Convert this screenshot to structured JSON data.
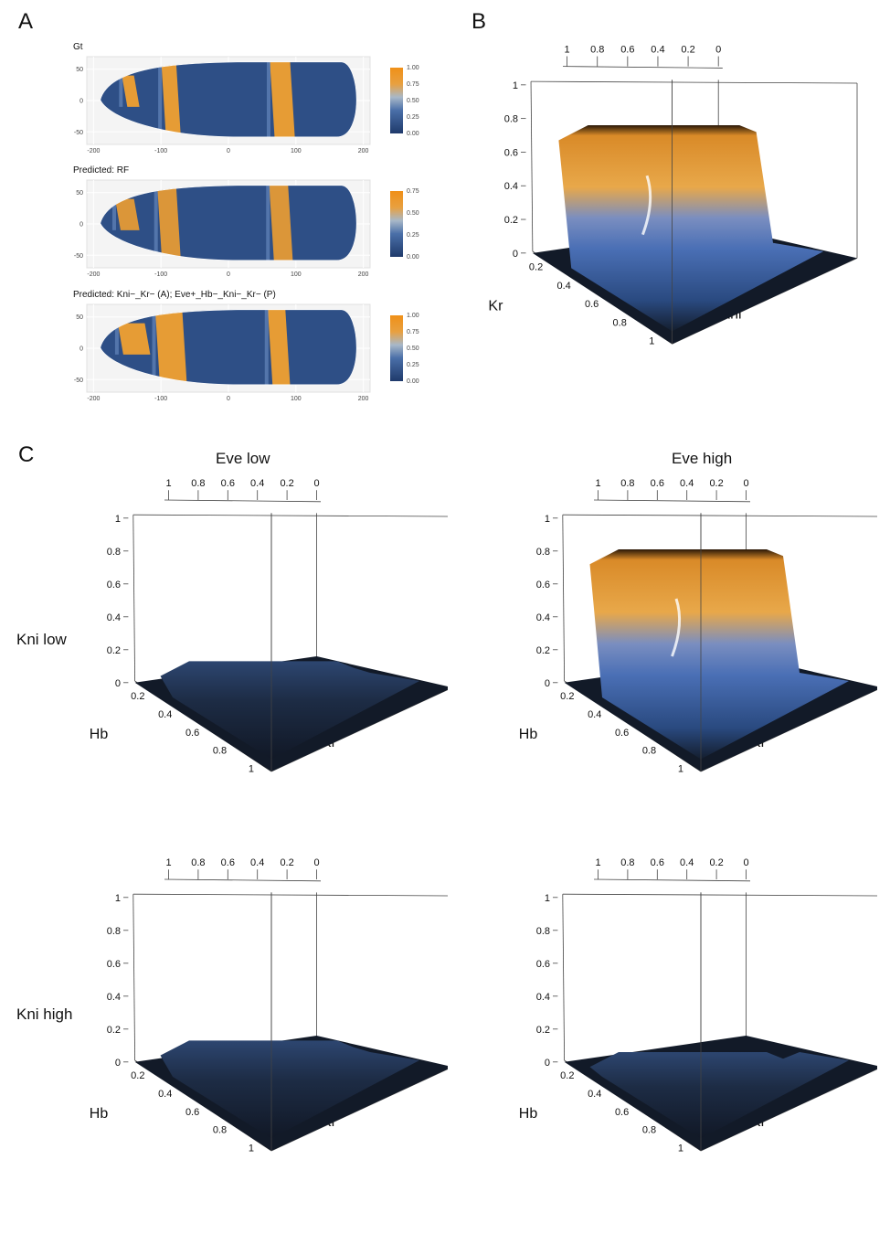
{
  "panels": {
    "a": "A",
    "b": "B",
    "c": "C"
  },
  "colors": {
    "bg_embryo": "#2e4f86",
    "stripe": "#f0a030",
    "stripe_mid": "#6d8fc4",
    "dark_surface": "#141e2e",
    "orange_top": "#d98a28"
  },
  "chart_data": [
    {
      "type": "heatmap",
      "title": "Gt",
      "x_ticks": [
        "-200",
        "-100",
        "0",
        "100",
        "200"
      ],
      "y_ticks": [
        "50",
        "0",
        "-50"
      ],
      "xlim": [
        -210,
        210
      ],
      "ylim": [
        -70,
        70
      ],
      "legend_ticks": [
        "1.00",
        "0.75",
        "0.50",
        "0.25",
        "0.00"
      ],
      "stripes": [
        {
          "center_x": -145,
          "width": 18,
          "value": 0.85,
          "extent": "partial"
        },
        {
          "center_x": -85,
          "width": 22,
          "value": 0.85,
          "extent": "full"
        },
        {
          "center_x": 80,
          "width": 30,
          "value": 0.9,
          "extent": "full"
        }
      ]
    },
    {
      "type": "heatmap",
      "title": "Predicted: RF",
      "x_ticks": [
        "-200",
        "-100",
        "0",
        "100",
        "200"
      ],
      "y_ticks": [
        "50",
        "0",
        "-50"
      ],
      "xlim": [
        -210,
        210
      ],
      "ylim": [
        -70,
        70
      ],
      "legend_ticks": [
        "0.75",
        "0.50",
        "0.25",
        "0.00"
      ],
      "stripes": [
        {
          "center_x": -150,
          "width": 28,
          "value": 0.8,
          "extent": "partial"
        },
        {
          "center_x": -88,
          "width": 28,
          "value": 0.75,
          "extent": "full"
        },
        {
          "center_x": 78,
          "width": 28,
          "value": 0.8,
          "extent": "full"
        }
      ]
    },
    {
      "type": "heatmap",
      "title": "Predicted: Kni−_Kr− (A); Eve+_Hb−_Kni−_Kr− (P)",
      "x_ticks": [
        "-200",
        "-100",
        "0",
        "100",
        "200"
      ],
      "y_ticks": [
        "50",
        "0",
        "-50"
      ],
      "xlim": [
        -210,
        210
      ],
      "ylim": [
        -70,
        70
      ],
      "legend_ticks": [
        "1.00",
        "0.75",
        "0.50",
        "0.25",
        "0.00"
      ],
      "stripes": [
        {
          "center_x": -140,
          "width": 40,
          "value": 1.0,
          "extent": "partial"
        },
        {
          "center_x": -85,
          "width": 40,
          "value": 1.0,
          "extent": "full"
        },
        {
          "center_x": 75,
          "width": 26,
          "value": 0.9,
          "extent": "full"
        }
      ]
    }
  ],
  "surfaces": {
    "b": {
      "back_ticks": [
        "1",
        "0.8",
        "0.6",
        "0.4",
        "0.2",
        "0"
      ],
      "vert_ticks": [
        "1",
        "0.8",
        "0.6",
        "0.4",
        "0.2",
        "0"
      ],
      "depth_ticks": [
        "0.2",
        "0.4",
        "0.6",
        "0.8",
        "1"
      ],
      "depth_label": "Kr",
      "front_label": "Kni",
      "plateau_height": 0.75
    },
    "c": {
      "col_titles": [
        "Eve low",
        "Eve high"
      ],
      "row_titles": [
        "Kni low",
        "Kni high"
      ],
      "back_ticks": [
        "1",
        "0.8",
        "0.6",
        "0.4",
        "0.2",
        "0"
      ],
      "vert_ticks": [
        "1",
        "0.8",
        "0.6",
        "0.4",
        "0.2",
        "0"
      ],
      "depth_ticks": [
        "0.2",
        "0.4",
        "0.6",
        "0.8",
        "1"
      ],
      "depth_label": "Hb",
      "front_label": "Kr",
      "plateau_heights": [
        0.12,
        0.8,
        0.12,
        0.05
      ]
    }
  }
}
